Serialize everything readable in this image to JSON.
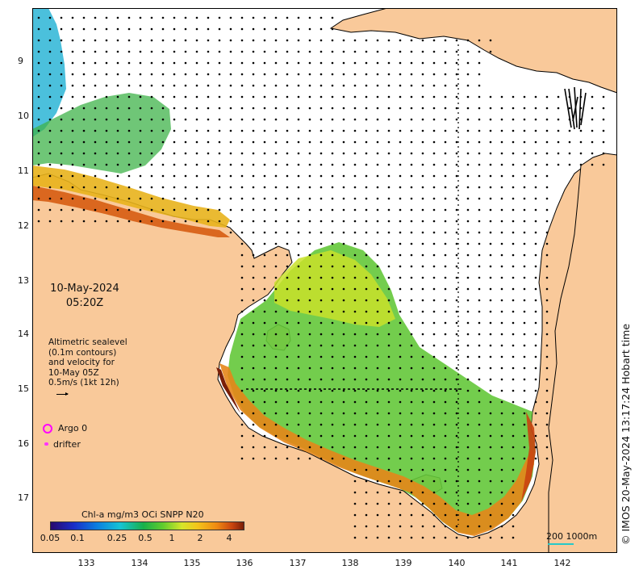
{
  "map": {
    "lat_ticks": [
      "9",
      "10",
      "11",
      "12",
      "13",
      "14",
      "15",
      "16",
      "17"
    ],
    "lon_ticks": [
      "133",
      "134",
      "135",
      "136",
      "137",
      "138",
      "139",
      "140",
      "141",
      "142"
    ],
    "lat_range": [
      -8.0,
      -17.9
    ],
    "lon_range": [
      132.0,
      143.0
    ],
    "colors": {
      "land": "#f9c99a",
      "water": "#ffffff",
      "coast": "#000000",
      "arrow": "#000000"
    }
  },
  "overlay": {
    "date": "10-May-2024",
    "time": "05:20Z"
  },
  "legend": {
    "lines": [
      "Altimetric sealevel",
      "(0.1m contours)",
      "and velocity for",
      "10-May 05Z",
      "0.5m/s (1kt 12h)"
    ],
    "argo_label": "Argo 0",
    "drifter_label": "drifter",
    "argo_color": "#ff00ff",
    "drifter_color": "#ff33ff"
  },
  "colorbar": {
    "title": "Chl-a mg/m3 OCi SNPP N20",
    "ticks": [
      "0.05",
      "0.1",
      "0.25",
      "0.5",
      "1",
      "2",
      "4"
    ]
  },
  "scalebar": {
    "label": "200  1000m",
    "color": "#26c9c9"
  },
  "credit": "© IMOS 20-May-2024 13:17:24 Hobart time"
}
